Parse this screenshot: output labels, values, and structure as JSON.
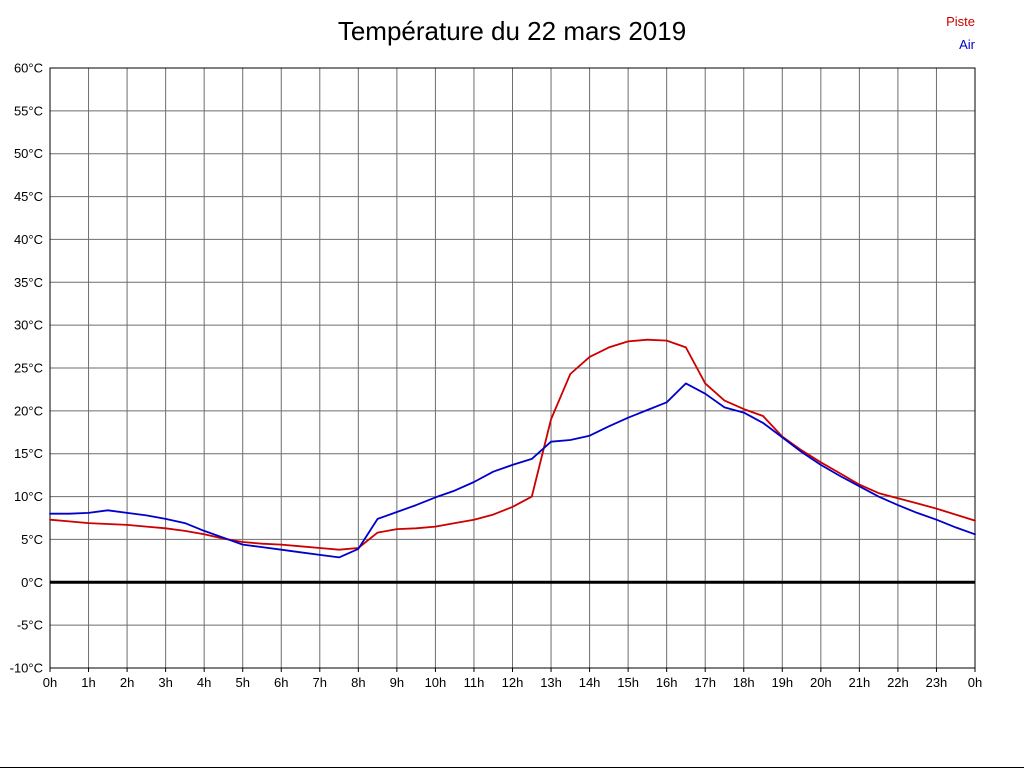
{
  "title": "Température du 22 mars 2019",
  "legend": [
    {
      "label": "Piste",
      "color": "#cc0000"
    },
    {
      "label": "Air",
      "color": "#0000cc"
    }
  ],
  "chart_data": {
    "type": "line",
    "title": "Température du 22 mars 2019",
    "xlabel": "",
    "ylabel": "",
    "y_unit": "°C",
    "x_unit": "h",
    "ylim": [
      -10,
      60
    ],
    "ytick_step": 5,
    "xlim": [
      0,
      24
    ],
    "grid": true,
    "grid_color": "#6e6e6e",
    "zero_line": true,
    "legend_position": "top-right",
    "xtick_labels": [
      "0h",
      "1h",
      "2h",
      "3h",
      "4h",
      "5h",
      "6h",
      "7h",
      "8h",
      "9h",
      "10h",
      "11h",
      "12h",
      "13h",
      "14h",
      "15h",
      "16h",
      "17h",
      "18h",
      "19h",
      "20h",
      "21h",
      "22h",
      "23h",
      "0h"
    ],
    "x": [
      0,
      0.5,
      1,
      1.5,
      2,
      2.5,
      3,
      3.5,
      4,
      4.5,
      5,
      5.5,
      6,
      6.5,
      7,
      7.5,
      8,
      8.5,
      9,
      9.5,
      10,
      10.5,
      11,
      11.5,
      12,
      12.5,
      13,
      13.5,
      14,
      14.5,
      15,
      15.5,
      16,
      16.5,
      17,
      17.5,
      18,
      18.5,
      19,
      19.5,
      20,
      20.5,
      21,
      21.5,
      22,
      22.5,
      23,
      23.5,
      24
    ],
    "series": [
      {
        "name": "Piste",
        "color": "#cc0000",
        "values": [
          7.3,
          7.1,
          6.9,
          6.8,
          6.7,
          6.5,
          6.3,
          6.0,
          5.6,
          5.1,
          4.7,
          4.5,
          4.4,
          4.2,
          4.0,
          3.8,
          4.0,
          5.8,
          6.2,
          6.3,
          6.5,
          6.9,
          7.3,
          7.9,
          8.8,
          10.0,
          19.0,
          24.3,
          26.3,
          27.4,
          28.1,
          28.3,
          28.2,
          27.4,
          23.2,
          21.2,
          20.2,
          19.4,
          17.0,
          15.4,
          14.0,
          12.7,
          11.4,
          10.4,
          9.8,
          9.2,
          8.6,
          7.9,
          7.2
        ]
      },
      {
        "name": "Air",
        "color": "#0000cc",
        "values": [
          8.0,
          8.0,
          8.1,
          8.4,
          8.1,
          7.8,
          7.4,
          6.9,
          6.0,
          5.2,
          4.4,
          4.1,
          3.8,
          3.5,
          3.2,
          2.9,
          3.9,
          7.4,
          8.2,
          9.0,
          9.9,
          10.7,
          11.7,
          12.9,
          13.7,
          14.4,
          16.4,
          16.6,
          17.1,
          18.2,
          19.2,
          20.1,
          21.0,
          23.2,
          22.0,
          20.4,
          19.8,
          18.6,
          16.9,
          15.2,
          13.7,
          12.4,
          11.2,
          10.0,
          9.0,
          8.1,
          7.3,
          6.4,
          5.6
        ]
      }
    ]
  }
}
